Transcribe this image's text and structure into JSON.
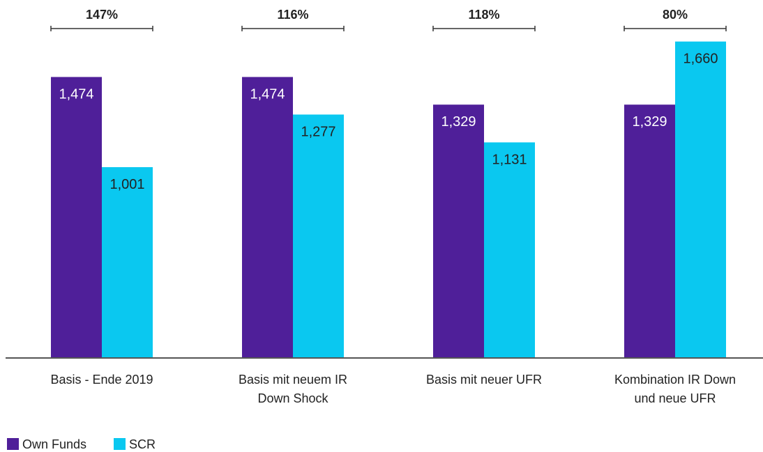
{
  "chart_data": {
    "type": "bar",
    "categories": [
      [
        "Basis - Ende 2019"
      ],
      [
        "Basis mit neuem IR",
        "Down Shock"
      ],
      [
        "Basis mit neuer UFR"
      ],
      [
        "Kombination IR Down",
        "und neue UFR"
      ]
    ],
    "series": [
      {
        "name": "Own Funds",
        "color": "#4f1f99",
        "values": [
          1474,
          1474,
          1329,
          1329
        ],
        "labels": [
          "1,474",
          "1,474",
          "1,329",
          "1,329"
        ]
      },
      {
        "name": "SCR",
        "color": "#0ac8f0",
        "values": [
          1001,
          1277,
          1131,
          1660
        ],
        "labels": [
          "1,001",
          "1,277",
          "1,131",
          "1,660"
        ]
      }
    ],
    "ratios": [
      "147%",
      "116%",
      "118%",
      "80%"
    ],
    "ylim": [
      0,
      1750
    ],
    "grid": false,
    "legend_position": "bottom-left"
  }
}
